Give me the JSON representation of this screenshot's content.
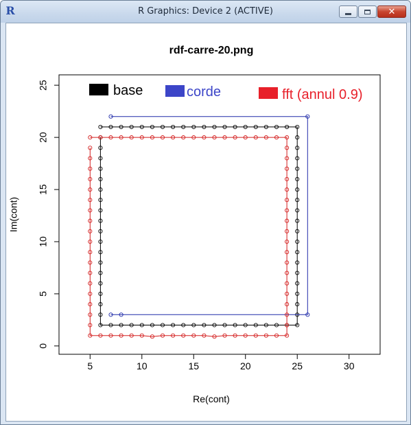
{
  "window": {
    "title": "R Graphics: Device 2 (ACTIVE)",
    "app_icon": "R",
    "controls": {
      "minimize": "minimize-icon",
      "maximize": "maximize-icon",
      "close": "close-icon"
    }
  },
  "chart_data": {
    "type": "scatter",
    "title": "rdf-carre-20.png",
    "xlabel": "Re(cont)",
    "ylabel": "Im(cont)",
    "xlim": [
      2,
      33
    ],
    "ylim": [
      -0.8,
      26
    ],
    "x_ticks": [
      5,
      10,
      15,
      20,
      25,
      30
    ],
    "y_ticks": [
      0,
      5,
      10,
      15,
      20,
      25
    ],
    "grid": false,
    "legend_position": "top",
    "legend": [
      {
        "label": "base",
        "color": "#000000"
      },
      {
        "label": "corde",
        "color": "#3c45c8"
      },
      {
        "label": "fft (annul 0.9)",
        "color": "#e8202a"
      }
    ],
    "series": [
      {
        "name": "base",
        "color": "#000000",
        "style": "line+points",
        "x": [
          6,
          7,
          8,
          9,
          10,
          11,
          12,
          13,
          14,
          15,
          16,
          17,
          18,
          19,
          20,
          21,
          22,
          23,
          24,
          25,
          25,
          25,
          25,
          25,
          25,
          25,
          25,
          25,
          25,
          25,
          25,
          25,
          25,
          25,
          25,
          25,
          25,
          25,
          25,
          24,
          23,
          22,
          21,
          20,
          19,
          18,
          17,
          16,
          15,
          14,
          13,
          12,
          11,
          10,
          9,
          8,
          7,
          6,
          6,
          6,
          6,
          6,
          6,
          6,
          6,
          6,
          6,
          6,
          6,
          6,
          6,
          6,
          6,
          6,
          6,
          6
        ],
        "y": [
          21,
          21,
          21,
          21,
          21,
          21,
          21,
          21,
          21,
          21,
          21,
          21,
          21,
          21,
          21,
          21,
          21,
          21,
          21,
          21,
          20,
          19,
          18,
          17,
          16,
          15,
          14,
          13,
          12,
          11,
          10,
          9,
          8,
          7,
          6,
          5,
          4,
          3,
          2,
          2,
          2,
          2,
          2,
          2,
          2,
          2,
          2,
          2,
          2,
          2,
          2,
          2,
          2,
          2,
          2,
          2,
          2,
          2,
          3,
          4,
          5,
          6,
          7,
          8,
          9,
          10,
          11,
          12,
          13,
          14,
          15,
          16,
          17,
          18,
          19,
          20
        ]
      },
      {
        "name": "corde",
        "color": "#1f2aa8",
        "style": "line+points",
        "x": [
          7,
          26,
          26,
          8,
          7
        ],
        "y": [
          22,
          22,
          3,
          3,
          3
        ]
      },
      {
        "name": "fft (annul 0.9)",
        "color": "#d42020",
        "style": "line+points",
        "x": [
          5,
          6,
          7,
          8,
          9,
          10,
          11,
          12,
          13,
          14,
          15,
          16,
          17,
          18,
          19,
          20,
          21,
          22,
          23,
          24,
          24,
          24,
          24,
          24,
          24,
          24,
          24,
          24,
          24,
          24,
          24,
          24,
          24,
          24,
          24,
          24,
          24,
          24,
          24,
          23,
          22,
          21,
          20,
          19,
          18,
          17,
          16,
          15,
          14,
          13,
          12,
          11,
          10,
          9,
          8,
          7,
          6,
          5,
          5,
          5,
          5,
          5,
          5,
          5,
          5,
          5,
          5,
          5,
          5,
          5,
          5,
          5,
          5,
          5,
          5,
          5
        ],
        "y": [
          20,
          20,
          20,
          20,
          20,
          20,
          20,
          20,
          20,
          20,
          20,
          20,
          20,
          20,
          20,
          20,
          20,
          20,
          20,
          20,
          19,
          18,
          17,
          16,
          15,
          14,
          13,
          12,
          11,
          10,
          9,
          8,
          7,
          6,
          5,
          4,
          3,
          2,
          1,
          1,
          1,
          1,
          1,
          1,
          1,
          0.9,
          1,
          1,
          1,
          1,
          1,
          0.9,
          1,
          1,
          1,
          1,
          1,
          1,
          2,
          3,
          4,
          5,
          6,
          7,
          8,
          9,
          10,
          11,
          12,
          13,
          14,
          15,
          16,
          17,
          18,
          19
        ]
      }
    ]
  }
}
